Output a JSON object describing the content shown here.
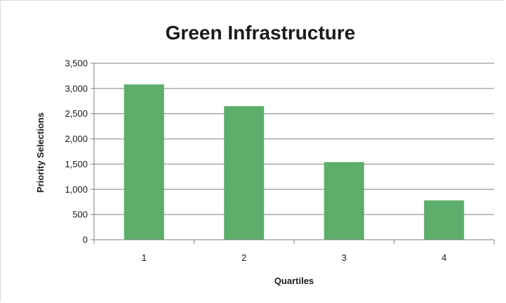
{
  "chart_data": {
    "type": "bar",
    "title": "Green Infrastructure",
    "xlabel": "Quartiles",
    "ylabel": "Priority Selections",
    "categories": [
      "1",
      "2",
      "3",
      "4"
    ],
    "values": [
      3080,
      2650,
      1540,
      780
    ],
    "ylim": [
      0,
      3500
    ],
    "yticks": [
      0,
      500,
      1000,
      1500,
      2000,
      2500,
      3000,
      3500
    ],
    "ytick_labels": [
      "0",
      "500",
      "1,000",
      "1,500",
      "2,000",
      "2,500",
      "3,000",
      "3,500"
    ],
    "grid": true,
    "legend": "none",
    "bar_color": "#5dae6a",
    "grid_color": "#808080"
  }
}
